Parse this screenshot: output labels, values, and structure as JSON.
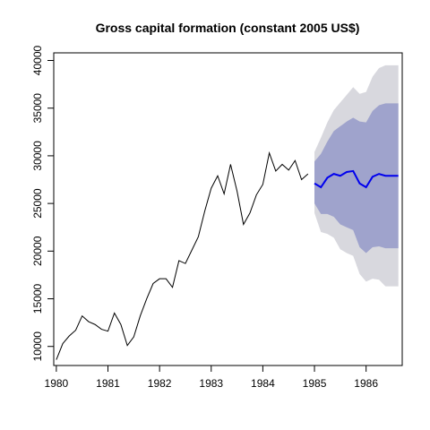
{
  "chart_data": {
    "type": "line",
    "title": "Gross capital formation (constant 2005 US$)",
    "xlabel": "",
    "ylabel": "",
    "xlim": [
      1979.95,
      1986.7
    ],
    "ylim": [
      8000,
      40800
    ],
    "xticks": [
      1980,
      1981,
      1982,
      1983,
      1984,
      1985,
      1986
    ],
    "xtick_labels": [
      "1980",
      "1981",
      "1982",
      "1983",
      "1984",
      "1985",
      "1986"
    ],
    "yticks": [
      10000,
      15000,
      20000,
      25000,
      30000,
      35000,
      40000
    ],
    "ytick_labels": [
      "10000",
      "15000",
      "20000",
      "25000",
      "30000",
      "35000",
      "40000"
    ],
    "grid": false,
    "colors": {
      "history": "#000000",
      "forecast": "#0000ee",
      "band80": "#9fa3cc",
      "band95": "#d8d8de"
    },
    "history": {
      "x": [
        1980.0,
        1980.125,
        1980.25,
        1980.375,
        1980.5,
        1980.625,
        1980.75,
        1980.875,
        1981.0,
        1981.125,
        1981.25,
        1981.375,
        1981.5,
        1981.625,
        1981.75,
        1981.875,
        1982.0,
        1982.125,
        1982.25,
        1982.375,
        1982.5,
        1982.625,
        1982.75,
        1982.875,
        1983.0,
        1983.125,
        1983.25,
        1983.375,
        1983.5,
        1983.625,
        1983.75,
        1983.875,
        1984.0,
        1984.125,
        1984.25,
        1984.375,
        1984.5,
        1984.625,
        1984.75,
        1984.875
      ],
      "y": [
        8600,
        10300,
        11100,
        11700,
        13200,
        12600,
        12300,
        11800,
        11600,
        13500,
        12300,
        10100,
        11000,
        13200,
        15000,
        16600,
        17100,
        17100,
        16200,
        19000,
        18700,
        20100,
        21500,
        24200,
        26600,
        27900,
        26000,
        29100,
        26300,
        22800,
        24000,
        25900,
        27000,
        30300,
        28400,
        29100,
        28500,
        29500,
        27500,
        28100
      ]
    },
    "forecast": {
      "x": [
        1985.0,
        1985.125,
        1985.25,
        1985.375,
        1985.5,
        1985.625,
        1985.75,
        1985.875,
        1986.0,
        1986.125,
        1986.25,
        1986.375,
        1986.5,
        1986.625
      ],
      "mean": [
        27100,
        26700,
        27700,
        28100,
        27900,
        28300,
        28400,
        27100,
        26700,
        27800,
        28100,
        27900,
        27900,
        27900
      ],
      "lo80": [
        25000,
        23900,
        23900,
        23600,
        22800,
        22500,
        22200,
        20400,
        19800,
        20400,
        20500,
        20300,
        20300,
        20300
      ],
      "hi80": [
        29400,
        30200,
        31500,
        32600,
        33100,
        33600,
        34000,
        33600,
        33500,
        34700,
        35300,
        35500,
        35500,
        35500
      ],
      "lo95": [
        24000,
        22000,
        21800,
        21400,
        20200,
        19800,
        19500,
        17600,
        16800,
        17100,
        17000,
        16300,
        16300,
        16300
      ],
      "hi95": [
        30400,
        31900,
        33500,
        34800,
        35600,
        36400,
        37200,
        36500,
        36700,
        38300,
        39200,
        39500,
        39500,
        39500
      ]
    }
  }
}
